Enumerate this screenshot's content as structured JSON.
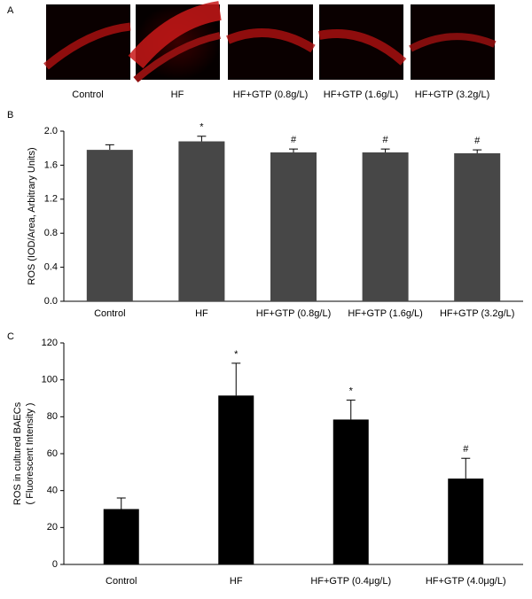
{
  "panel_a": {
    "label": "A",
    "images": [
      "Control",
      "HF",
      "HF+GTP (0.8g/L)",
      "HF+GTP (1.6g/L)",
      "HF+GTP (3.2g/L)"
    ]
  },
  "chart_data": [
    {
      "type": "bar",
      "panel": "B",
      "y_label": "ROS (IOD/Area, Arbitrary Units)",
      "categories": [
        "Control",
        "HF",
        "HF+GTP (0.8g/L)",
        "HF+GTP (1.6g/L)",
        "HF+GTP (3.2g/L)"
      ],
      "values": [
        1.78,
        1.88,
        1.75,
        1.75,
        1.74
      ],
      "errors": [
        0.06,
        0.06,
        0.04,
        0.04,
        0.04
      ],
      "annotations": [
        null,
        "*",
        "#",
        "#",
        "#"
      ],
      "color": "#474747",
      "ylim": [
        0,
        2.0
      ],
      "yticks": [
        {
          "value": 0,
          "label": "0.0"
        },
        0.4,
        0.8,
        1.2,
        1.6,
        {
          "value": 2.0,
          "label": "2.0"
        }
      ]
    },
    {
      "type": "bar",
      "panel": "C",
      "y_label": [
        "ROS in cultured BAECs",
        "( Fluorescent Intensity )"
      ],
      "categories": [
        "Control",
        "HF",
        "HF+GTP (0.4μg/L)",
        "HF+GTP (4.0μg/L)"
      ],
      "values": [
        30,
        91.5,
        78.5,
        46.5
      ],
      "errors": [
        6,
        17.5,
        10.5,
        11
      ],
      "annotations": [
        null,
        "*",
        "*",
        "#"
      ],
      "color": "#000000",
      "ylim": [
        0,
        120
      ],
      "yticks": [
        0,
        20,
        40,
        60,
        80,
        100,
        120
      ]
    }
  ]
}
